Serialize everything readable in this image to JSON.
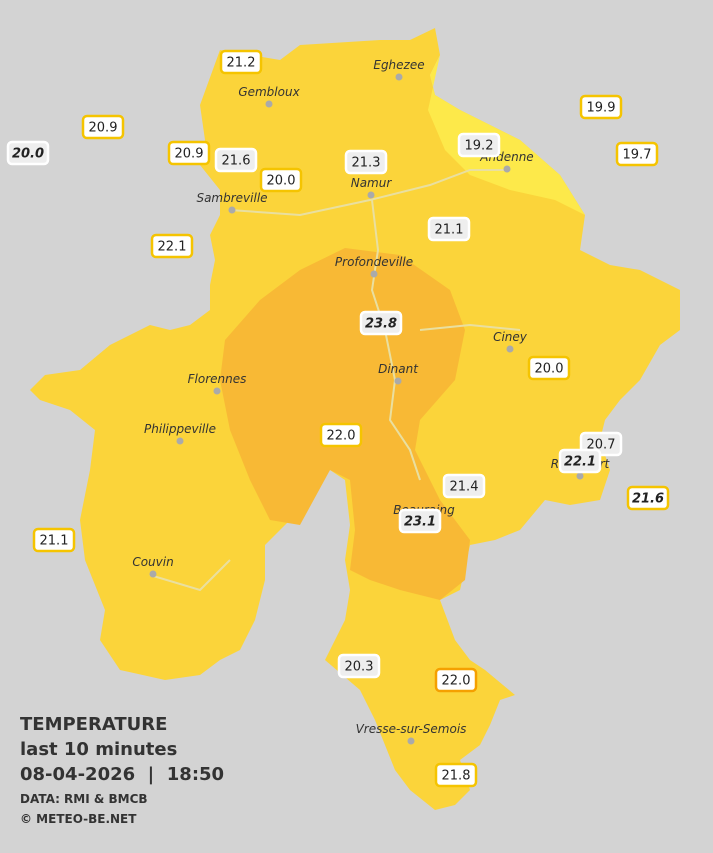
{
  "map": {
    "cities": [
      "Eghezee",
      "Gembloux",
      "Andenne",
      "Namur",
      "Sambreville",
      "Profondeville",
      "Ciney",
      "Dinant",
      "Florennes",
      "Philippeville",
      "Rochefort",
      "Beauraing",
      "Couvin",
      "Vresse-sur-Semois"
    ],
    "stations": [
      "21.2",
      "20.9",
      "20.0",
      "20.9",
      "21.6",
      "20.0",
      "21.3",
      "19.2",
      "19.9",
      "19.7",
      "22.1",
      "21.1",
      "23.8",
      "20.0",
      "22.0",
      "20.7",
      "22.1",
      "21.4",
      "21.6",
      "23.1",
      "21.1",
      "20.3",
      "22.0",
      "21.8"
    ]
  },
  "legend": {
    "title": "TEMPERATURE",
    "subtitle": "last 10 minutes",
    "datetime": "08-04-2026  |  18:50",
    "source": "DATA: RMI & BMCB",
    "credit": "© METEO-BE.NET"
  }
}
